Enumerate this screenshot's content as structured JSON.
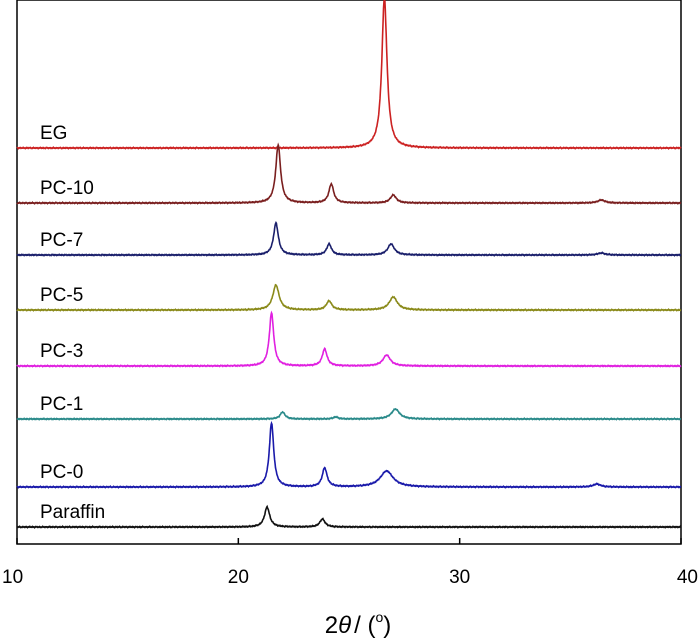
{
  "chart_data": {
    "type": "line",
    "title": "",
    "xlabel": "2θ / (°)",
    "xlabel_parts": {
      "prefix": "2",
      "var": "θ",
      "suffix": "/ (",
      "degree": "o",
      "close": ")"
    },
    "ylabel": "",
    "xlim": [
      10,
      40
    ],
    "xticks": [
      10,
      20,
      30,
      40
    ],
    "y_axis": "stacked offset intensity (no scale shown)",
    "grid": false,
    "legend": "none; series labelled directly above each trace at left",
    "series": [
      {
        "name": "EG",
        "color": "#cc2222",
        "peaks": [
          {
            "x": 26.6,
            "height": 150,
            "width": 0.14
          }
        ]
      },
      {
        "name": "PC-10",
        "color": "#7a1f1f",
        "peaks": [
          {
            "x": 21.8,
            "height": 58,
            "width": 0.13
          },
          {
            "x": 24.2,
            "height": 19,
            "width": 0.13
          },
          {
            "x": 27.0,
            "height": 8,
            "width": 0.16
          },
          {
            "x": 36.4,
            "height": 3,
            "width": 0.2
          }
        ]
      },
      {
        "name": "PC-7",
        "color": "#1a1f6b",
        "peaks": [
          {
            "x": 21.7,
            "height": 32,
            "width": 0.13
          },
          {
            "x": 24.1,
            "height": 11,
            "width": 0.13
          },
          {
            "x": 26.9,
            "height": 11,
            "width": 0.18
          },
          {
            "x": 36.4,
            "height": 2,
            "width": 0.2
          }
        ]
      },
      {
        "name": "PC-5",
        "color": "#8a8a1a",
        "peaks": [
          {
            "x": 21.7,
            "height": 25,
            "width": 0.17
          },
          {
            "x": 24.1,
            "height": 9,
            "width": 0.15
          },
          {
            "x": 27.0,
            "height": 13,
            "width": 0.22
          }
        ]
      },
      {
        "name": "PC-3",
        "color": "#e020e0",
        "peaks": [
          {
            "x": 21.5,
            "height": 53,
            "width": 0.12
          },
          {
            "x": 23.9,
            "height": 17,
            "width": 0.13
          },
          {
            "x": 26.7,
            "height": 11,
            "width": 0.2
          }
        ]
      },
      {
        "name": "PC-1",
        "color": "#2a8a8a",
        "peaks": [
          {
            "x": 22.0,
            "height": 7,
            "width": 0.13
          },
          {
            "x": 24.4,
            "height": 2,
            "width": 0.13
          },
          {
            "x": 27.1,
            "height": 10,
            "width": 0.22
          }
        ]
      },
      {
        "name": "PC-0",
        "color": "#1a1aaa",
        "peaks": [
          {
            "x": 21.5,
            "height": 64,
            "width": 0.12
          },
          {
            "x": 23.9,
            "height": 19,
            "width": 0.13
          },
          {
            "x": 26.7,
            "height": 16,
            "width": 0.35
          },
          {
            "x": 36.2,
            "height": 3,
            "width": 0.2
          }
        ]
      },
      {
        "name": "Paraffin",
        "color": "#111111",
        "peaks": [
          {
            "x": 21.3,
            "height": 20,
            "width": 0.14
          },
          {
            "x": 23.8,
            "height": 8,
            "width": 0.14
          }
        ]
      }
    ]
  }
}
